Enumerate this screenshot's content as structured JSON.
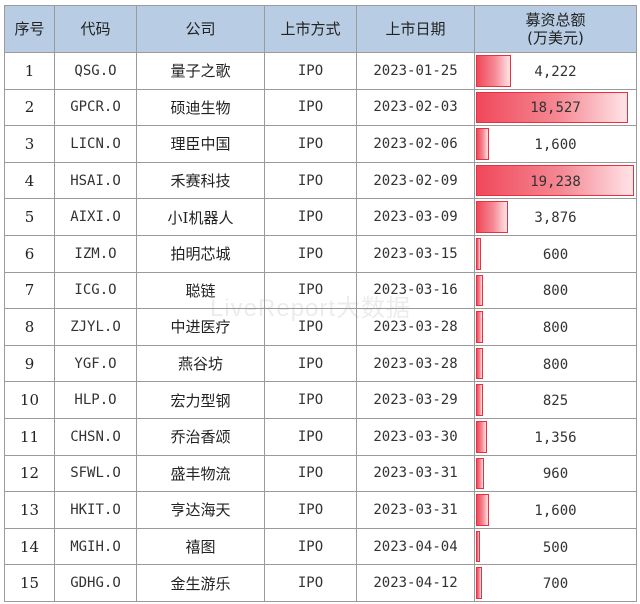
{
  "headers": [
    "序号",
    "代码",
    "公司",
    "上市方式",
    "上市日期",
    "募资总额",
    "(万美元)"
  ],
  "max_amount": 19238,
  "bar_color": "#f0485a",
  "watermark": "LiveReport大数据",
  "rows": [
    {
      "no": "1",
      "code": "QSG.O",
      "company": "量子之歌",
      "method": "IPO",
      "date": "2023-01-25",
      "amount": "4,222",
      "value": 4222
    },
    {
      "no": "2",
      "code": "GPCR.O",
      "company": "硕迪生物",
      "method": "IPO",
      "date": "2023-02-03",
      "amount": "18,527",
      "value": 18527
    },
    {
      "no": "3",
      "code": "LICN.O",
      "company": "理臣中国",
      "method": "IPO",
      "date": "2023-02-06",
      "amount": "1,600",
      "value": 1600
    },
    {
      "no": "4",
      "code": "HSAI.O",
      "company": "禾赛科技",
      "method": "IPO",
      "date": "2023-02-09",
      "amount": "19,238",
      "value": 19238
    },
    {
      "no": "5",
      "code": "AIXI.O",
      "company": "小I机器人",
      "method": "IPO",
      "date": "2023-03-09",
      "amount": "3,876",
      "value": 3876
    },
    {
      "no": "6",
      "code": "IZM.O",
      "company": "拍明芯城",
      "method": "IPO",
      "date": "2023-03-15",
      "amount": "600",
      "value": 600
    },
    {
      "no": "7",
      "code": "ICG.O",
      "company": "聪链",
      "method": "IPO",
      "date": "2023-03-16",
      "amount": "800",
      "value": 800
    },
    {
      "no": "8",
      "code": "ZJYL.O",
      "company": "中进医疗",
      "method": "IPO",
      "date": "2023-03-28",
      "amount": "800",
      "value": 800
    },
    {
      "no": "9",
      "code": "YGF.O",
      "company": "燕谷坊",
      "method": "IPO",
      "date": "2023-03-28",
      "amount": "800",
      "value": 800
    },
    {
      "no": "10",
      "code": "HLP.O",
      "company": "宏力型钢",
      "method": "IPO",
      "date": "2023-03-29",
      "amount": "825",
      "value": 825
    },
    {
      "no": "11",
      "code": "CHSN.O",
      "company": "乔治香颂",
      "method": "IPO",
      "date": "2023-03-30",
      "amount": "1,356",
      "value": 1356
    },
    {
      "no": "12",
      "code": "SFWL.O",
      "company": "盛丰物流",
      "method": "IPO",
      "date": "2023-03-31",
      "amount": "960",
      "value": 960
    },
    {
      "no": "13",
      "code": "HKIT.O",
      "company": "亨达海天",
      "method": "IPO",
      "date": "2023-03-31",
      "amount": "1,600",
      "value": 1600
    },
    {
      "no": "14",
      "code": "MGIH.O",
      "company": "禧图",
      "method": "IPO",
      "date": "2023-04-04",
      "amount": "500",
      "value": 500
    },
    {
      "no": "15",
      "code": "GDHG.O",
      "company": "金生游乐",
      "method": "IPO",
      "date": "2023-04-12",
      "amount": "700",
      "value": 700
    }
  ]
}
